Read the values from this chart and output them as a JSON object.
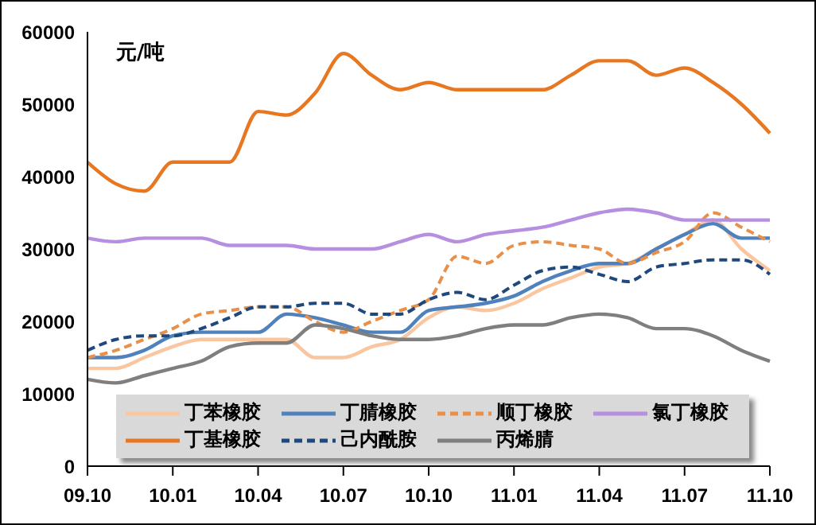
{
  "chart_data": {
    "type": "line",
    "ylabel": "元/吨",
    "categories": [
      "09.10",
      null,
      null,
      "10.01",
      null,
      null,
      "10.04",
      null,
      null,
      "10.07",
      null,
      null,
      "10.10",
      null,
      null,
      "11.01",
      null,
      null,
      "11.04",
      null,
      null,
      "11.07",
      null,
      null,
      "11.10"
    ],
    "series": [
      {
        "name": "丁苯橡胶",
        "color": "#f9c6a0",
        "line_style": "solid",
        "values": [
          13500,
          13500,
          15000,
          16500,
          17500,
          17500,
          17500,
          17500,
          15000,
          15000,
          16500,
          17500,
          20500,
          22000,
          21500,
          22500,
          24500,
          26000,
          27500,
          28000,
          30000,
          32000,
          34000,
          30000,
          27000
        ]
      },
      {
        "name": "丁腈橡胶",
        "color": "#4f81bd",
        "line_style": "solid",
        "values": [
          15000,
          15000,
          16000,
          18000,
          18500,
          18500,
          18500,
          21000,
          20500,
          19500,
          18500,
          18500,
          21500,
          22000,
          22500,
          23500,
          25500,
          27000,
          28000,
          28000,
          30000,
          32000,
          33500,
          31500,
          31500
        ]
      },
      {
        "name": "顺丁橡胶",
        "color": "#e8904a",
        "line_style": "dashed",
        "values": [
          15000,
          16000,
          17500,
          19000,
          21000,
          21500,
          22000,
          22000,
          20000,
          18500,
          20000,
          21500,
          23000,
          29000,
          28000,
          30500,
          31000,
          30500,
          30000,
          28000,
          29500,
          31000,
          35000,
          33000,
          31000
        ]
      },
      {
        "name": "氯丁橡胶",
        "color": "#b68fe0",
        "line_style": "solid",
        "values": [
          31500,
          31000,
          31500,
          31500,
          31500,
          30500,
          30500,
          30500,
          30000,
          30000,
          30000,
          31000,
          32000,
          31000,
          32000,
          32500,
          33000,
          34000,
          35000,
          35500,
          35000,
          34000,
          34000,
          34000,
          34000
        ]
      },
      {
        "name": "丁基橡胶",
        "color": "#e87722",
        "line_style": "solid",
        "values": [
          42000,
          39000,
          38000,
          42000,
          42000,
          42000,
          49000,
          48500,
          51500,
          57000,
          54000,
          52000,
          53000,
          52000,
          52000,
          52000,
          52000,
          54000,
          56000,
          56000,
          54000,
          55000,
          53000,
          50000,
          46000
        ]
      },
      {
        "name": "己内酰胺",
        "color": "#1f497d",
        "line_style": "dashed",
        "values": [
          16000,
          17500,
          18000,
          18000,
          19000,
          20500,
          22000,
          22000,
          22500,
          22500,
          21000,
          21000,
          23000,
          24000,
          23000,
          25000,
          27000,
          27500,
          26500,
          25500,
          27500,
          28000,
          28500,
          28500,
          26500
        ]
      },
      {
        "name": "丙烯腈",
        "color": "#7f7f7f",
        "line_style": "solid",
        "values": [
          12000,
          11500,
          12500,
          13500,
          14500,
          16500,
          17000,
          17000,
          19500,
          19000,
          18000,
          17500,
          17500,
          18000,
          19000,
          19500,
          19500,
          20500,
          21000,
          20500,
          19000,
          19000,
          18000,
          16000,
          14500
        ]
      }
    ],
    "ylim": [
      0,
      60000
    ],
    "yticks": [
      0,
      10000,
      20000,
      30000,
      40000,
      50000,
      60000
    ],
    "grid": false,
    "legend": "bottom",
    "marker": "none"
  }
}
